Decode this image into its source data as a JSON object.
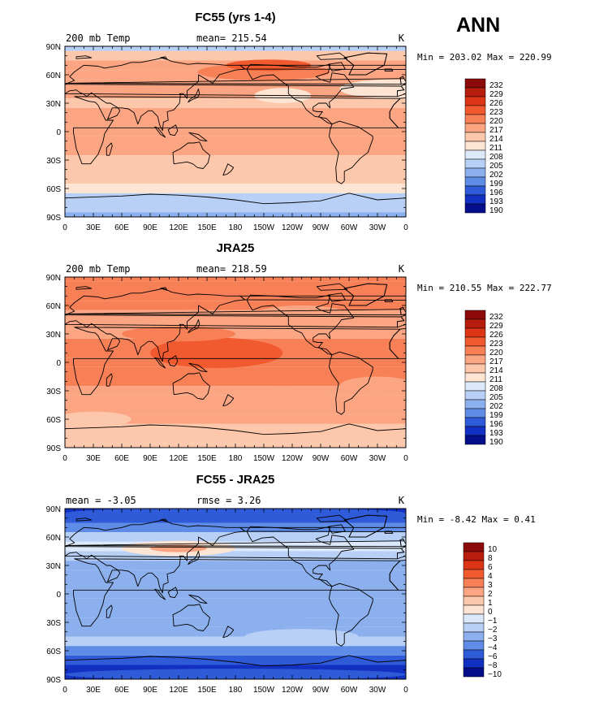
{
  "page_title": "ANN",
  "chart_data": [
    {
      "type": "heatmap",
      "title": "FC55 (yrs 1-4)",
      "subtitle_left": "200 mb Temp",
      "subtitle_mid": "mean= 215.54",
      "units": "K",
      "stats": "Min = 203.02 Max = 220.99",
      "min": 203.02,
      "max": 220.99,
      "mean": 215.54,
      "lat_ticks": [
        "90N",
        "60N",
        "30N",
        "0",
        "30S",
        "60S",
        "90S"
      ],
      "lon_ticks": [
        "0",
        "30E",
        "60E",
        "90E",
        "120E",
        "150E",
        "180",
        "150W",
        "120W",
        "90W",
        "60W",
        "30W",
        "0"
      ],
      "colorbar_levels": [
        "232",
        "229",
        "226",
        "223",
        "220",
        "217",
        "214",
        "211",
        "208",
        "205",
        "202",
        "199",
        "196",
        "193",
        "190"
      ],
      "colorbar_colors": [
        "#8c0a0a",
        "#b81c0c",
        "#dd3617",
        "#f05a2e",
        "#f88057",
        "#fba583",
        "#fdc7ab",
        "#fee4d2",
        "#dce9fb",
        "#b8d0f6",
        "#8cb0ee",
        "#5f8ce6",
        "#2f5bd8",
        "#1230c2",
        "#050e8a"
      ],
      "zonal_profile": [
        [
          "90N",
          205
        ],
        [
          "80N",
          216
        ],
        [
          "70N",
          218
        ],
        [
          "60N",
          219
        ],
        [
          "50N",
          219
        ],
        [
          "40N",
          217
        ],
        [
          "30N",
          216
        ],
        [
          "20N",
          217
        ],
        [
          "10N",
          218
        ],
        [
          "0",
          218
        ],
        [
          "10S",
          218
        ],
        [
          "20S",
          217
        ],
        [
          "30S",
          216
        ],
        [
          "40S",
          216
        ],
        [
          "50S",
          215
        ],
        [
          "60S",
          213
        ],
        [
          "70S",
          207
        ],
        [
          "80S",
          205
        ],
        [
          "90S",
          204
        ]
      ]
    },
    {
      "type": "heatmap",
      "title": "JRA25",
      "subtitle_left": "200 mb Temp",
      "subtitle_mid": "mean= 218.59",
      "units": "K",
      "stats": "Min = 210.55 Max = 222.77",
      "min": 210.55,
      "max": 222.77,
      "mean": 218.59,
      "lat_ticks": [
        "90N",
        "60N",
        "30N",
        "0",
        "30S",
        "60S",
        "90S"
      ],
      "lon_ticks": [
        "0",
        "30E",
        "60E",
        "90E",
        "120E",
        "150E",
        "180",
        "150W",
        "120W",
        "90W",
        "60W",
        "30W",
        "0"
      ],
      "colorbar_levels": [
        "232",
        "229",
        "226",
        "223",
        "220",
        "217",
        "214",
        "211",
        "208",
        "205",
        "202",
        "199",
        "196",
        "193",
        "190"
      ],
      "colorbar_colors": [
        "#8c0a0a",
        "#b81c0c",
        "#dd3617",
        "#f05a2e",
        "#f88057",
        "#fba583",
        "#fdc7ab",
        "#fee4d2",
        "#dce9fb",
        "#b8d0f6",
        "#8cb0ee",
        "#5f8ce6",
        "#2f5bd8",
        "#1230c2",
        "#050e8a"
      ],
      "zonal_profile": [
        [
          "90N",
          221
        ],
        [
          "80N",
          221
        ],
        [
          "70N",
          220
        ],
        [
          "60N",
          220
        ],
        [
          "50N",
          219
        ],
        [
          "40N",
          219
        ],
        [
          "30N",
          219
        ],
        [
          "20N",
          220
        ],
        [
          "10N",
          221
        ],
        [
          "0",
          221
        ],
        [
          "10S",
          221
        ],
        [
          "20S",
          220
        ],
        [
          "30S",
          219
        ],
        [
          "40S",
          219
        ],
        [
          "50S",
          218
        ],
        [
          "60S",
          217
        ],
        [
          "70S",
          216
        ],
        [
          "80S",
          215
        ],
        [
          "90S",
          214
        ]
      ]
    },
    {
      "type": "heatmap",
      "title": "FC55 - JRA25",
      "subtitle_left": "mean =   -3.05",
      "subtitle_mid": "rmse =    3.26",
      "units": "K",
      "stats": "Min =   -8.42 Max =    0.41",
      "min": -8.42,
      "max": 0.41,
      "mean": -3.05,
      "rmse": 3.26,
      "lat_ticks": [
        "90N",
        "60N",
        "30N",
        "0",
        "30S",
        "60S",
        "90S"
      ],
      "lon_ticks": [
        "0",
        "30E",
        "60E",
        "90E",
        "120E",
        "150E",
        "180",
        "150W",
        "120W",
        "90W",
        "60W",
        "30W",
        "0"
      ],
      "colorbar_levels": [
        "10",
        "8",
        "6",
        "4",
        "3",
        "2",
        "1",
        "0",
        "−1",
        "−2",
        "−3",
        "−4",
        "−6",
        "−8",
        "−10"
      ],
      "colorbar_colors": [
        "#8c0a0a",
        "#b81c0c",
        "#dd3617",
        "#f05a2e",
        "#f88057",
        "#fba583",
        "#fdc7ab",
        "#fee4d2",
        "#dce9fb",
        "#b8d0f6",
        "#8cb0ee",
        "#5f8ce6",
        "#2f5bd8",
        "#1230c2",
        "#050e8a"
      ],
      "zonal_profile": [
        [
          "90N",
          -8
        ],
        [
          "80N",
          -6
        ],
        [
          "70N",
          -4
        ],
        [
          "60N",
          -2
        ],
        [
          "50N",
          -1
        ],
        [
          "40N",
          -2
        ],
        [
          "30N",
          -3
        ],
        [
          "20N",
          -3
        ],
        [
          "10N",
          -3
        ],
        [
          "0",
          -3
        ],
        [
          "10S",
          -3
        ],
        [
          "20S",
          -3
        ],
        [
          "30S",
          -3
        ],
        [
          "40S",
          -3
        ],
        [
          "50S",
          -2
        ],
        [
          "60S",
          -4
        ],
        [
          "70S",
          -6
        ],
        [
          "80S",
          -8
        ],
        [
          "90S",
          -8
        ]
      ]
    }
  ]
}
